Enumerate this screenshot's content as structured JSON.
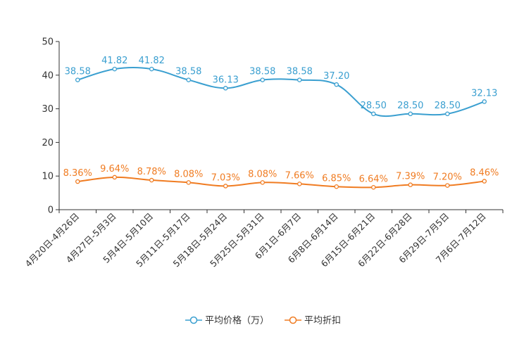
{
  "chart_data": {
    "type": "line",
    "title": "",
    "xlabel": "",
    "ylabel": "",
    "ylim": [
      0,
      50
    ],
    "yticks": [
      0,
      10,
      20,
      30,
      40,
      50
    ],
    "grid": false,
    "legend": "bottom-center",
    "categories": [
      "4月20日-4月26日",
      "4月27日-5月3日",
      "5月4日-5月10日",
      "5月11日-5月17日",
      "5月18日-5月24日",
      "5月25日-5月31日",
      "6月1日-6月7日",
      "6月8日-6月14日",
      "6月15日-6月21日",
      "6月22日-6月28日",
      "6月29日-7月5日",
      "7月6日-7月12日"
    ],
    "series": [
      {
        "name": "平均价格（万）",
        "color": "#3a9fd0",
        "values": [
          38.58,
          41.82,
          41.82,
          38.58,
          36.13,
          38.58,
          38.58,
          37.2,
          28.5,
          28.5,
          28.5,
          32.13
        ],
        "labels": [
          "38.58",
          "41.82",
          "41.82",
          "38.58",
          "36.13",
          "38.58",
          "38.58",
          "37.20",
          "28.50",
          "28.50",
          "28.50",
          "32.13"
        ]
      },
      {
        "name": "平均折扣",
        "color": "#f07c22",
        "values": [
          8.36,
          9.64,
          8.78,
          8.08,
          7.03,
          8.08,
          7.66,
          6.85,
          6.64,
          7.39,
          7.2,
          8.46
        ],
        "labels": [
          "8.36%",
          "9.64%",
          "8.78%",
          "8.08%",
          "7.03%",
          "8.08%",
          "7.66%",
          "6.85%",
          "6.64%",
          "7.39%",
          "7.20%",
          "8.46%"
        ]
      }
    ]
  }
}
